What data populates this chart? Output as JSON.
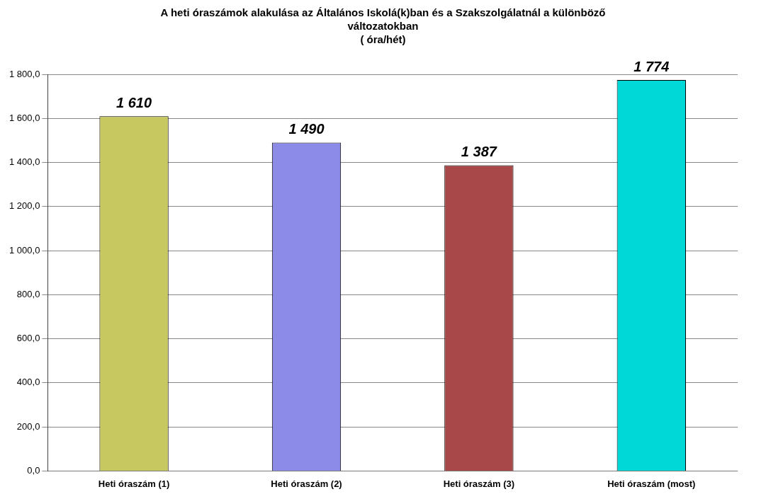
{
  "chart_data": {
    "type": "bar",
    "title": "A heti óraszámok alakulása az Általános Iskolá(k)ban és a Szakszolgálatnál a különböző változatokban",
    "subtitle": "( óra/hét)",
    "categories": [
      "Heti óraszám (1)",
      "Heti óraszám (2)",
      "Heti óraszám (3)",
      "Heti óraszám (most)"
    ],
    "values": [
      1610,
      1490,
      1387,
      1774
    ],
    "colors": [
      "#c8c860",
      "#8c8ce8",
      "#a84848",
      "#00d8d8"
    ],
    "value_labels": [
      "1 610",
      "1 490",
      "1 387",
      "1 774"
    ],
    "ylim": [
      0,
      1800
    ],
    "yticks": [
      {
        "value": 0,
        "label": "0,0"
      },
      {
        "value": 200,
        "label": "200,0"
      },
      {
        "value": 400,
        "label": "400,0"
      },
      {
        "value": 600,
        "label": "600,0"
      },
      {
        "value": 800,
        "label": "800,0"
      },
      {
        "value": 1000,
        "label": "1 000,0"
      },
      {
        "value": 1200,
        "label": "1 200,0"
      },
      {
        "value": 1400,
        "label": "1 400,0"
      },
      {
        "value": 1600,
        "label": "1 600,0"
      },
      {
        "value": 1800,
        "label": "1 800,0"
      }
    ],
    "grid": "y"
  }
}
